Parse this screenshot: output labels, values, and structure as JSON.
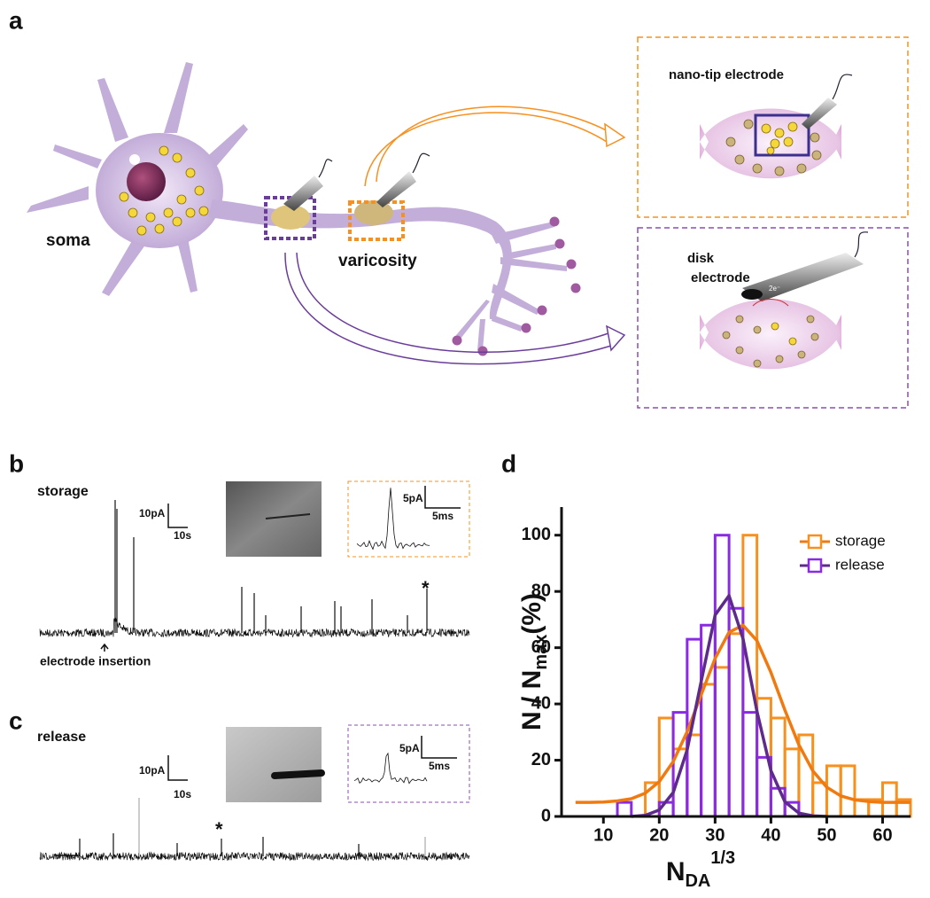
{
  "panel_a": {
    "label": "a",
    "soma": "soma",
    "varicosity": "varicosity",
    "nano_tip": "nano-tip electrode",
    "disk_1": "disk",
    "disk_2": "electrode",
    "electron": "2e⁻"
  },
  "panel_b": {
    "label": "b",
    "title": "storage",
    "scale_y": "10pA",
    "scale_x": "10s",
    "inset_y": "5pA",
    "inset_x": "5ms",
    "arrow_label": "electrode insertion",
    "star": "*"
  },
  "panel_c": {
    "label": "c",
    "title": "release",
    "scale_y": "10pA",
    "scale_x": "10s",
    "inset_y": "5pA",
    "inset_x": "5ms",
    "star": "*"
  },
  "chart_data": {
    "type": "histogram",
    "label": "d",
    "xlabel": {
      "base": "N",
      "sub": "DA",
      "sup": "1/3"
    },
    "ylabel": {
      "pre": "N / N",
      "sub": "max",
      "post": "(%)"
    },
    "xlim": [
      2.5,
      65
    ],
    "xticks": [
      10,
      20,
      30,
      40,
      50,
      60
    ],
    "ylim": [
      0,
      110
    ],
    "yticks": [
      0,
      20,
      40,
      60,
      80,
      100
    ],
    "legend": "upper right",
    "series": [
      {
        "name": "storage",
        "color": "#f7901e",
        "fit_color": "#f07a10",
        "bins": [
          17.5,
          20,
          22.5,
          25,
          27.5,
          30,
          32.5,
          35,
          37.5,
          40,
          42.5,
          45,
          47.5,
          50,
          52.5,
          55,
          57.5,
          60,
          62.5,
          65
        ],
        "values": [
          12,
          35,
          24,
          29,
          47,
          53,
          65,
          100,
          42,
          35,
          24,
          29,
          12,
          18,
          18,
          6,
          6,
          12,
          6
        ],
        "fit": {
          "x": [
            5,
            7.5,
            10,
            12.5,
            15,
            17.5,
            20,
            22.5,
            25,
            27.5,
            30,
            32.5,
            35,
            37.5,
            40,
            42.5,
            45,
            47.5,
            50,
            52.5,
            55,
            57.5,
            60,
            62.5,
            65
          ],
          "values": [
            5,
            5,
            5.1,
            5.5,
            6.3,
            8.3,
            12.4,
            19.5,
            30.1,
            43.2,
            56.2,
            65.5,
            68,
            62.5,
            51.2,
            37.8,
            25.5,
            16.2,
            10.4,
            7.3,
            5.9,
            5.3,
            5,
            5,
            5
          ]
        }
      },
      {
        "name": "release",
        "color": "#8a2be2",
        "fit_color": "#5e2b8c",
        "bins": [
          12.5,
          15,
          17.5,
          20,
          22.5,
          25,
          27.5,
          30,
          32.5,
          35,
          37.5,
          40,
          42.5,
          45
        ],
        "values": [
          5,
          0,
          0,
          5,
          37,
          63,
          68,
          100,
          74,
          37,
          21,
          10,
          5
        ],
        "fit": {
          "x": [
            15,
            17.5,
            20,
            22.5,
            25,
            27.5,
            30,
            32.5,
            35,
            37.5,
            40,
            42.5,
            45,
            47.5,
            50
          ],
          "values": [
            0,
            0.4,
            2.3,
            8.5,
            23.6,
            47.9,
            71.6,
            78.5,
            63.2,
            37.4,
            16.3,
            5.2,
            1.2,
            0.2,
            0
          ]
        }
      }
    ]
  }
}
